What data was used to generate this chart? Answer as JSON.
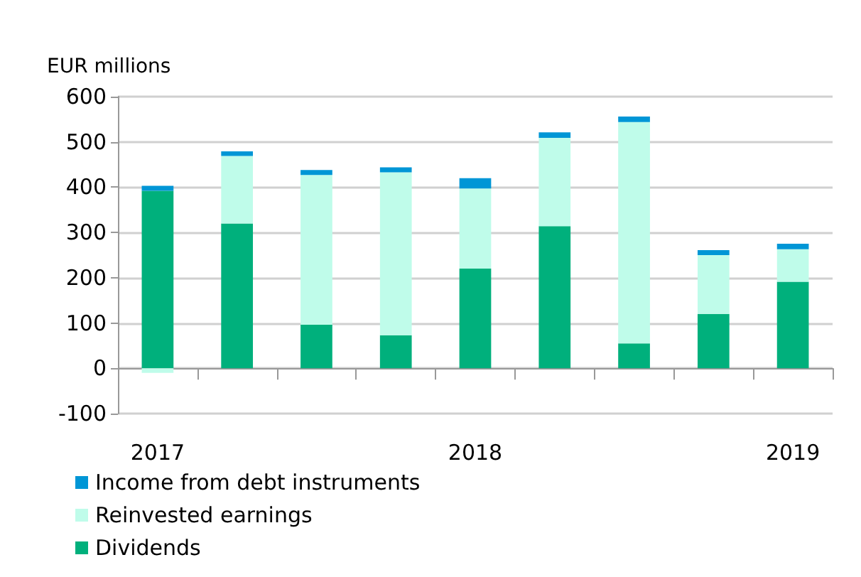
{
  "chart_data": {
    "type": "bar",
    "stacked": true,
    "ylabel": "EUR millions",
    "categories": [
      "2017",
      null,
      null,
      null,
      "2018",
      null,
      null,
      null,
      "2019"
    ],
    "series": [
      {
        "name": "Dividends",
        "color": "#00b07c",
        "values": [
          392,
          320,
          96,
          73,
          220,
          314,
          55,
          120,
          191
        ]
      },
      {
        "name": "Reinvested earnings",
        "color": "#bffcea",
        "values": [
          -10,
          149,
          331,
          360,
          177,
          195,
          489,
          130,
          72
        ]
      },
      {
        "name": "Income from debt instruments",
        "color": "#0096d6",
        "values": [
          11,
          10,
          11,
          11,
          23,
          12,
          12,
          11,
          12
        ]
      }
    ],
    "ylim": [
      -100,
      600
    ],
    "yticks": [
      -100,
      0,
      100,
      200,
      300,
      400,
      500,
      600
    ],
    "grid": "y",
    "legend": "bottom left"
  }
}
